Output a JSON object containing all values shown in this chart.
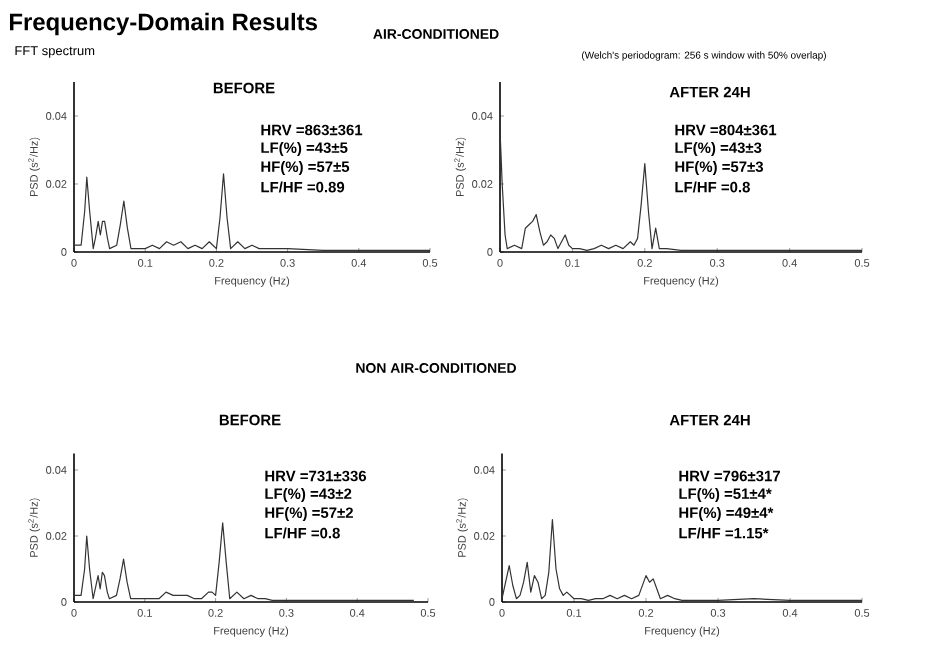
{
  "chart_data": [
    {
      "type": "line",
      "title": "BEFORE",
      "xlabel": "Frequency (Hz)",
      "ylabel": "PSD (s$^{2}$/Hz)",
      "color": "#333333",
      "xlim": [
        0,
        0.5
      ],
      "ylim": [
        0,
        0.05
      ],
      "xticks": [
        0,
        0.1,
        0.2,
        0.3,
        0.4,
        0.5
      ],
      "yticks": [
        0,
        0.02,
        0.04
      ],
      "x": [
        0,
        0.01,
        0.015,
        0.018,
        0.022,
        0.027,
        0.03,
        0.034,
        0.037,
        0.04,
        0.043,
        0.047,
        0.05,
        0.06,
        0.065,
        0.07,
        0.075,
        0.08,
        0.09,
        0.1,
        0.11,
        0.12,
        0.13,
        0.14,
        0.15,
        0.16,
        0.17,
        0.18,
        0.19,
        0.195,
        0.2,
        0.205,
        0.21,
        0.215,
        0.22,
        0.23,
        0.24,
        0.25,
        0.26,
        0.27,
        0.28,
        0.3,
        0.35,
        0.4,
        0.45,
        0.5
      ],
      "values": [
        0.002,
        0.002,
        0.012,
        0.022,
        0.012,
        0.001,
        0.004,
        0.009,
        0.005,
        0.009,
        0.009,
        0.004,
        0.001,
        0.002,
        0.008,
        0.015,
        0.007,
        0.001,
        0.001,
        0.001,
        0.002,
        0.001,
        0.003,
        0.002,
        0.003,
        0.001,
        0.002,
        0.001,
        0.003,
        0.002,
        0.001,
        0.01,
        0.023,
        0.01,
        0.001,
        0.003,
        0.001,
        0.002,
        0.001,
        0.001,
        0.001,
        0.001,
        0.0005,
        0.0005,
        0.0005,
        0.0005
      ],
      "annotations": [
        "Frequency-Domain Results",
        "FFT spectrum",
        "AIR-CONDITIONED",
        "HRV =863±361",
        "LF(%) =43±5",
        "HF(%) =57±5",
        "LF/HF =0.89"
      ]
    },
    {
      "type": "line",
      "title": "AFTER 24H",
      "xlabel": "Frequency (Hz)",
      "ylabel": "PSD (s$^{2}$/Hz)",
      "color": "#333333",
      "xlim": [
        0,
        0.5
      ],
      "ylim": [
        0,
        0.05
      ],
      "xticks": [
        0,
        0.1,
        0.2,
        0.3,
        0.4,
        0.5
      ],
      "yticks": [
        0,
        0.02,
        0.04
      ],
      "x": [
        0,
        0.003,
        0.007,
        0.01,
        0.02,
        0.03,
        0.035,
        0.04,
        0.045,
        0.05,
        0.055,
        0.06,
        0.065,
        0.07,
        0.075,
        0.08,
        0.09,
        0.095,
        0.1,
        0.11,
        0.12,
        0.13,
        0.14,
        0.15,
        0.16,
        0.17,
        0.18,
        0.185,
        0.19,
        0.195,
        0.2,
        0.205,
        0.21,
        0.215,
        0.22,
        0.23,
        0.25,
        0.3,
        0.35,
        0.4,
        0.45,
        0.5
      ],
      "values": [
        0.036,
        0.02,
        0.005,
        0.001,
        0.002,
        0.001,
        0.007,
        0.008,
        0.009,
        0.011,
        0.006,
        0.002,
        0.003,
        0.005,
        0.004,
        0.001,
        0.005,
        0.002,
        0.001,
        0.001,
        0.0005,
        0.001,
        0.002,
        0.001,
        0.002,
        0.001,
        0.003,
        0.002,
        0.004,
        0.014,
        0.026,
        0.012,
        0.001,
        0.007,
        0.001,
        0.001,
        0.0005,
        0.0005,
        0.0005,
        0.0005,
        0.0005,
        0.0005
      ],
      "annotations": [
        "(Welch's periodogram: 256 s window with 50% overlap)",
        "HRV =804±361",
        "LF(%) =43±3",
        "HF(%) =57±3",
        "LF/HF =0.8"
      ]
    },
    {
      "type": "line",
      "title": "BEFORE",
      "xlabel": "Frequency (Hz)",
      "ylabel": "PSD (s$^{2}$/Hz)",
      "color": "#333333",
      "xlim": [
        0,
        0.5
      ],
      "ylim": [
        0,
        0.045
      ],
      "xticks": [
        0,
        0.1,
        0.2,
        0.3,
        0.4,
        0.5
      ],
      "yticks": [
        0,
        0.02,
        0.04
      ],
      "x": [
        0,
        0.01,
        0.015,
        0.018,
        0.022,
        0.027,
        0.03,
        0.034,
        0.037,
        0.04,
        0.043,
        0.047,
        0.05,
        0.06,
        0.065,
        0.07,
        0.075,
        0.08,
        0.09,
        0.1,
        0.11,
        0.12,
        0.13,
        0.14,
        0.15,
        0.16,
        0.17,
        0.18,
        0.19,
        0.195,
        0.2,
        0.205,
        0.21,
        0.215,
        0.22,
        0.23,
        0.24,
        0.25,
        0.26,
        0.27,
        0.28,
        0.3,
        0.35,
        0.4,
        0.45,
        0.48
      ],
      "values": [
        0.002,
        0.002,
        0.01,
        0.02,
        0.01,
        0.001,
        0.004,
        0.008,
        0.004,
        0.009,
        0.008,
        0.003,
        0.001,
        0.002,
        0.007,
        0.013,
        0.006,
        0.001,
        0.001,
        0.001,
        0.001,
        0.001,
        0.003,
        0.002,
        0.002,
        0.002,
        0.001,
        0.001,
        0.003,
        0.003,
        0.002,
        0.012,
        0.024,
        0.012,
        0.001,
        0.003,
        0.001,
        0.002,
        0.001,
        0.001,
        0.0005,
        0.0005,
        0.0005,
        0.0005,
        0.0005,
        0.0005
      ],
      "annotations": [
        "NON AIR-CONDITIONED",
        "HRV =731±336",
        "LF(%) =43±2",
        "HF(%) =57±2",
        "LF/HF =0.8"
      ]
    },
    {
      "type": "line",
      "title": "AFTER 24H",
      "xlabel": "Frequency (Hz)",
      "ylabel": "PSD (s$^{2}$/Hz)",
      "color": "#333333",
      "xlim": [
        0,
        0.5
      ],
      "ylim": [
        0,
        0.045
      ],
      "xticks": [
        0,
        0.1,
        0.2,
        0.3,
        0.4,
        0.5
      ],
      "yticks": [
        0,
        0.02,
        0.04
      ],
      "x": [
        0,
        0.005,
        0.01,
        0.015,
        0.02,
        0.025,
        0.03,
        0.035,
        0.04,
        0.045,
        0.05,
        0.055,
        0.06,
        0.065,
        0.07,
        0.075,
        0.08,
        0.085,
        0.09,
        0.1,
        0.11,
        0.12,
        0.13,
        0.14,
        0.15,
        0.16,
        0.17,
        0.18,
        0.19,
        0.195,
        0.2,
        0.205,
        0.21,
        0.215,
        0.22,
        0.23,
        0.24,
        0.25,
        0.3,
        0.35,
        0.4,
        0.45,
        0.5
      ],
      "values": [
        0.001,
        0.006,
        0.011,
        0.005,
        0.001,
        0.002,
        0.006,
        0.012,
        0.003,
        0.008,
        0.006,
        0.001,
        0.002,
        0.009,
        0.025,
        0.01,
        0.004,
        0.002,
        0.003,
        0.001,
        0.001,
        0.0005,
        0.001,
        0.001,
        0.002,
        0.001,
        0.002,
        0.001,
        0.002,
        0.005,
        0.008,
        0.006,
        0.007,
        0.004,
        0.001,
        0.002,
        0.001,
        0.0005,
        0.0005,
        0.001,
        0.0005,
        0.0005,
        0.0005
      ],
      "annotations": [
        "HRV =796±317",
        "LF(%) =51±4*",
        "HF(%) =49±4*",
        "LF/HF =1.15*"
      ]
    }
  ]
}
